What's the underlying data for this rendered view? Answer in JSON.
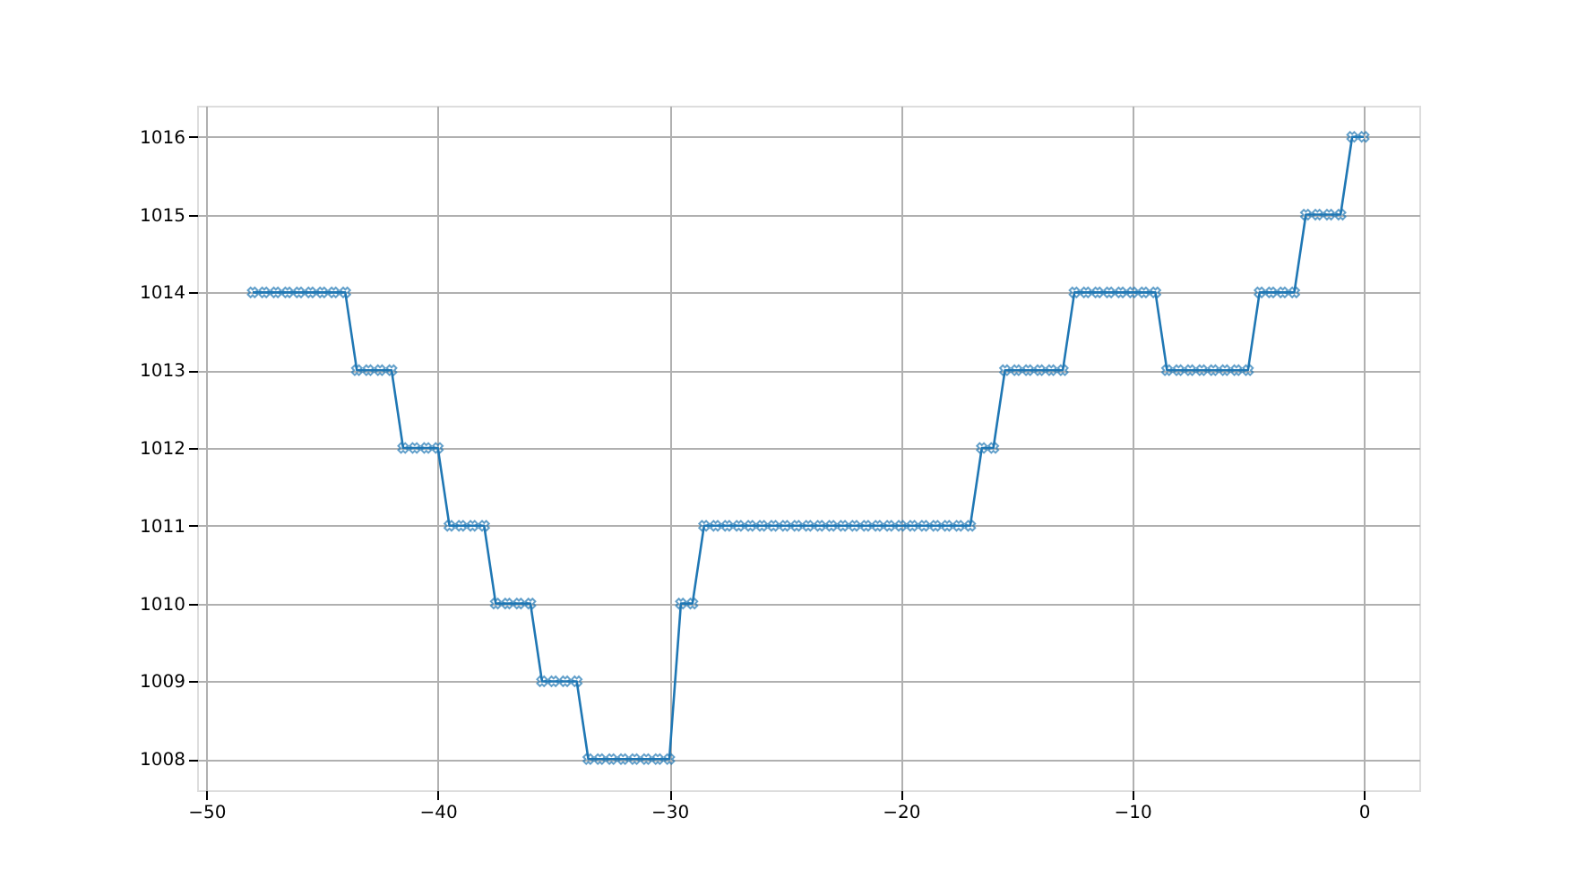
{
  "chart_data": {
    "type": "line",
    "marker": "cross",
    "grid": true,
    "line_style": "solid",
    "x": [
      -48,
      -47.5,
      -47,
      -46.5,
      -46,
      -45.5,
      -45,
      -44.5,
      -44,
      -43.5,
      -43,
      -42.5,
      -42,
      -41.5,
      -41,
      -40.5,
      -40,
      -39.5,
      -39,
      -38.5,
      -38,
      -37.5,
      -37,
      -36.5,
      -36,
      -35.5,
      -35,
      -34.5,
      -34,
      -33.5,
      -33,
      -32.5,
      -32,
      -31.5,
      -31,
      -30.5,
      -30,
      -29.5,
      -29,
      -28.5,
      -28,
      -27.5,
      -27,
      -26.5,
      -26,
      -25.5,
      -25,
      -24.5,
      -24,
      -23.5,
      -23,
      -22.5,
      -22,
      -21.5,
      -21,
      -20.5,
      -20,
      -19.5,
      -19,
      -18.5,
      -18,
      -17.5,
      -17,
      -16.5,
      -16,
      -15.5,
      -15,
      -14.5,
      -14,
      -13.5,
      -13,
      -12.5,
      -12,
      -11.5,
      -11,
      -10.5,
      -10,
      -9.5,
      -9,
      -8.5,
      -8,
      -7.5,
      -7,
      -6.5,
      -6,
      -5.5,
      -5,
      -4.5,
      -4,
      -3.5,
      -3,
      -2.5,
      -2,
      -1.5,
      -1,
      -0.5,
      0
    ],
    "series": [
      {
        "color": "#1f77b4",
        "values": [
          1014,
          1014,
          1014,
          1014,
          1014,
          1014,
          1014,
          1014,
          1014,
          1013,
          1013,
          1013,
          1013,
          1012,
          1012,
          1012,
          1012,
          1011,
          1011,
          1011,
          1011,
          1010,
          1010,
          1010,
          1010,
          1009,
          1009,
          1009,
          1009,
          1008,
          1008,
          1008,
          1008,
          1008,
          1008,
          1008,
          1008,
          1010,
          1010,
          1011,
          1011,
          1011,
          1011,
          1011,
          1011,
          1011,
          1011,
          1011,
          1011,
          1011,
          1011,
          1011,
          1011,
          1011,
          1011,
          1011,
          1011,
          1011,
          1011,
          1011,
          1011,
          1011,
          1011,
          1012,
          1012,
          1013,
          1013,
          1013,
          1013,
          1013,
          1013,
          1014,
          1014,
          1014,
          1014,
          1014,
          1014,
          1014,
          1014,
          1013,
          1013,
          1013,
          1013,
          1013,
          1013,
          1013,
          1013,
          1014,
          1014,
          1014,
          1014,
          1015,
          1015,
          1015,
          1015,
          1016,
          1016
        ]
      }
    ],
    "xlim": [
      -50.4,
      2.4
    ],
    "xticks": [
      -50,
      -40,
      -30,
      -20,
      -10,
      0
    ],
    "ylim": [
      1007.6,
      1016.4
    ],
    "yticks": [
      1008,
      1009,
      1010,
      1011,
      1012,
      1013,
      1014,
      1015,
      1016
    ]
  }
}
